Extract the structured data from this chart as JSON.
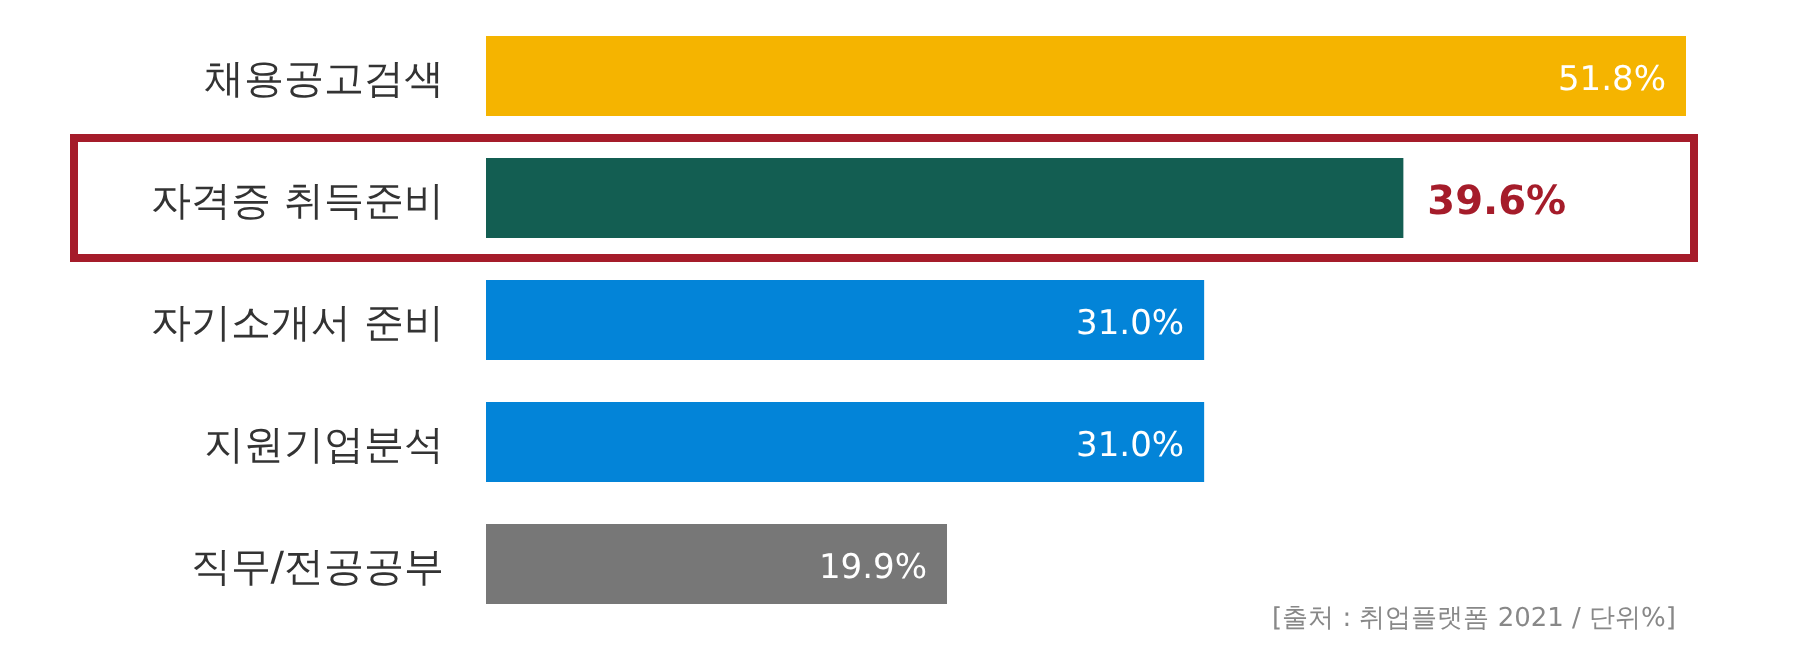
{
  "chart_data": {
    "type": "bar",
    "orientation": "horizontal",
    "categories": [
      "채용공고검색",
      "자격증 취득준비",
      "자기소개서 준비",
      "지원기업분석",
      "직무/전공공부"
    ],
    "values": [
      51.8,
      39.6,
      31.0,
      31.0,
      19.9
    ],
    "value_labels": [
      "51.8%",
      null,
      "31.0%",
      "31.0%",
      "19.9%"
    ],
    "colors": [
      "#f5b400",
      "#135e52",
      "#0384d8",
      "#0384d8",
      "#777777"
    ],
    "annotations": [
      {
        "text": "39.6%",
        "x": 39.6,
        "y": "자격증 취득준비"
      },
      "[출처 : 취업플랫폼 2021 / 단위%]"
    ]
  }
}
